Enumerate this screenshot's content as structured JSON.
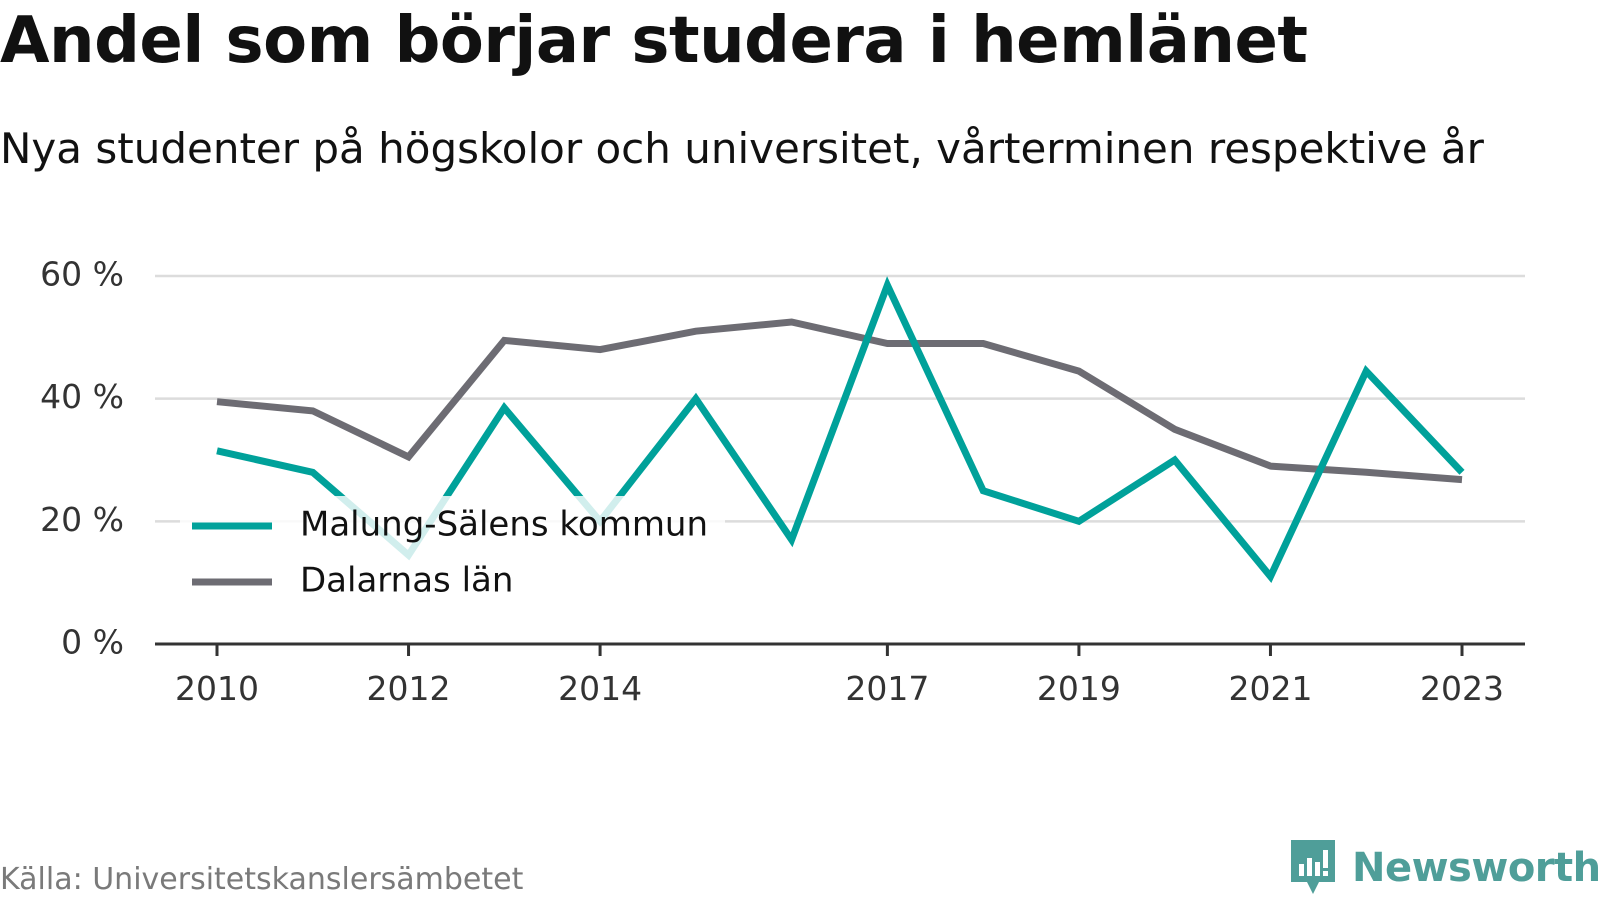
{
  "title": "Andel som börjar studera i hemlänet",
  "subtitle": "Nya studenter på högskolor och universitet, vårterminen respektive år",
  "source": "Källa: Universitetskanslersämbetet",
  "brand": {
    "name": "Newsworthy",
    "icon": "newsworthy-logo-icon",
    "color": "#4f9e99"
  },
  "chart_data": {
    "type": "line",
    "title": "Andel som börjar studera i hemlänet",
    "subtitle": "Nya studenter på högskolor och universitet, vårterminen respektive år",
    "x": [
      2010,
      2011,
      2012,
      2013,
      2014,
      2015,
      2016,
      2017,
      2018,
      2019,
      2020,
      2021,
      2022,
      2023
    ],
    "x_tick_labels": [
      "2010",
      "2012",
      "2014",
      "2017",
      "2019",
      "2021",
      "2023"
    ],
    "x_ticks": [
      2010,
      2012,
      2014,
      2017,
      2019,
      2021,
      2023
    ],
    "y_ticks": [
      0,
      20,
      40,
      60
    ],
    "y_tick_labels": [
      "0 %",
      "20 %",
      "40 %",
      "60 %"
    ],
    "ylim": [
      0,
      60
    ],
    "grid": true,
    "legend_position": "bottom-left",
    "series": [
      {
        "name": "Malung-Sälens kommun",
        "color": "#00a19a",
        "values": [
          31.5,
          28,
          14.5,
          38.5,
          20,
          40,
          17,
          58.5,
          25,
          20,
          30,
          11,
          44.5,
          28
        ]
      },
      {
        "name": "Dalarnas län",
        "color": "#6d6c73",
        "values": [
          39.5,
          38,
          30.5,
          49.5,
          48,
          51,
          52.5,
          49,
          49,
          44.5,
          35,
          29,
          28,
          26.8
        ]
      }
    ]
  }
}
